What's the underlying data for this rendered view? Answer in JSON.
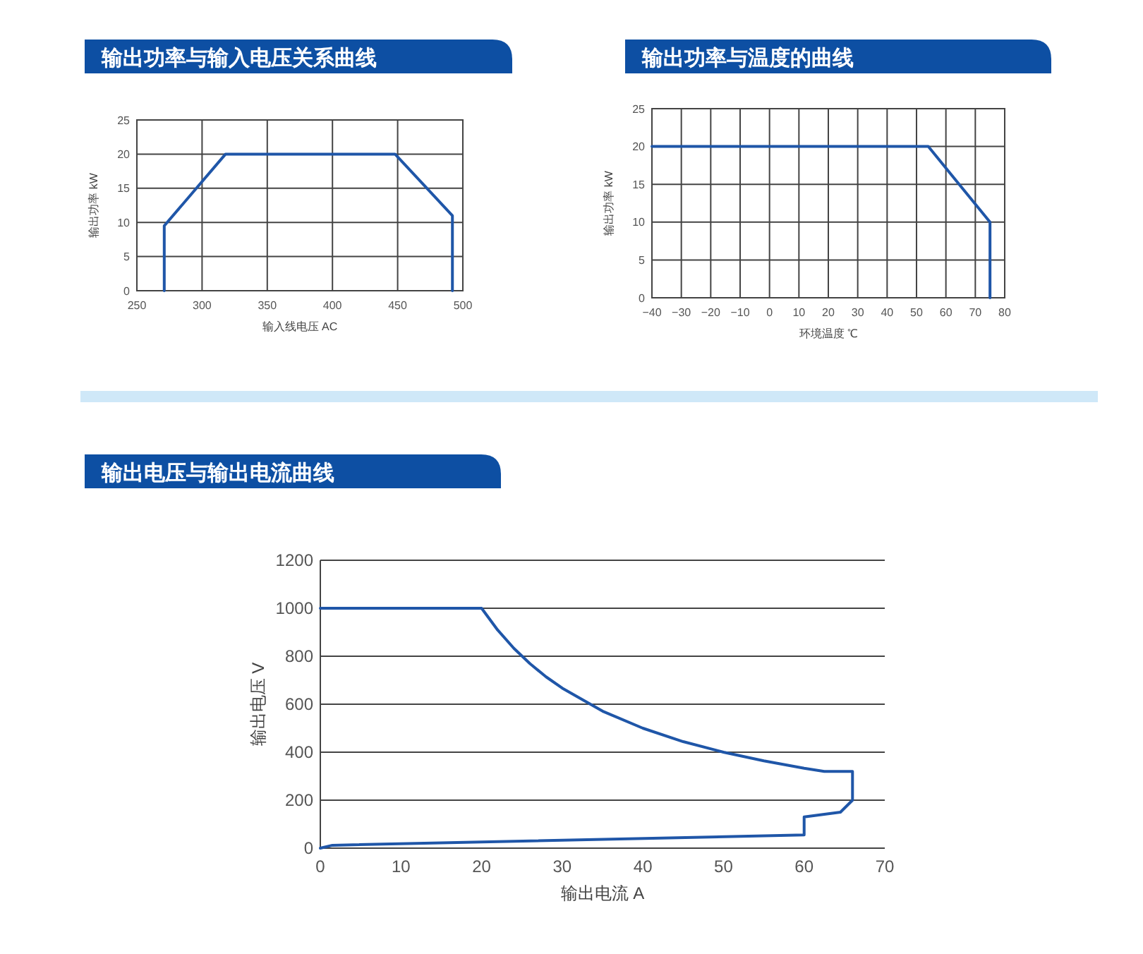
{
  "chart_data": [
    {
      "type": "line",
      "title": "输出功率与输入电压关系曲线",
      "xlabel": "输入线电压  AC",
      "ylabel": "输出功率 kW",
      "grid": true,
      "marker": "none",
      "line_style": "solid",
      "x": [
        271,
        271,
        318,
        448,
        492,
        492
      ],
      "series": [
        {
          "color": "#1f56a8",
          "values": [
            0,
            9.5,
            20,
            20,
            11,
            0
          ]
        }
      ],
      "xlim": [
        250,
        500
      ],
      "xticks": [
        250,
        300,
        350,
        400,
        450,
        500
      ],
      "ylim": [
        0,
        25
      ],
      "yticks": [
        0,
        5,
        10,
        15,
        20,
        25
      ]
    },
    {
      "type": "line",
      "title": "输出功率与温度的曲线",
      "xlabel": "环境温度  ℃",
      "ylabel": "输出功率 kW",
      "grid": true,
      "marker": "none",
      "line_style": "solid",
      "x": [
        -40,
        54,
        75,
        75
      ],
      "series": [
        {
          "color": "#1f56a8",
          "values": [
            20,
            20,
            10,
            0
          ]
        }
      ],
      "xlim": [
        -40,
        80
      ],
      "xticks": [
        -40,
        -30,
        -20,
        -10,
        0,
        10,
        20,
        30,
        40,
        50,
        60,
        70,
        80
      ],
      "ylim": [
        0,
        25
      ],
      "yticks": [
        0,
        5,
        10,
        15,
        20,
        25
      ]
    },
    {
      "type": "line",
      "title": "输出电压与输出电流曲线",
      "xlabel": "输出电流   A",
      "ylabel": "输出电压   V",
      "grid": "y",
      "marker": "none",
      "line_style": "solid",
      "x": [
        0,
        1.5,
        60,
        60,
        64.5,
        66,
        66,
        62.5,
        60,
        55,
        50,
        45,
        40,
        35,
        30,
        28,
        26,
        24,
        22,
        20,
        0
      ],
      "series": [
        {
          "color": "#1f56a8",
          "values": [
            0,
            12,
            55,
            130,
            150,
            200,
            320,
            320,
            333,
            364,
            400,
            444,
            500,
            571,
            667,
            714,
            769,
            833,
            909,
            1000,
            1000
          ]
        }
      ],
      "xlim": [
        0,
        70
      ],
      "xticks": [
        0,
        10,
        20,
        30,
        40,
        50,
        60,
        70
      ],
      "ylim": [
        0,
        1200
      ],
      "yticks": [
        0,
        200,
        400,
        600,
        800,
        1000,
        1200
      ]
    }
  ]
}
